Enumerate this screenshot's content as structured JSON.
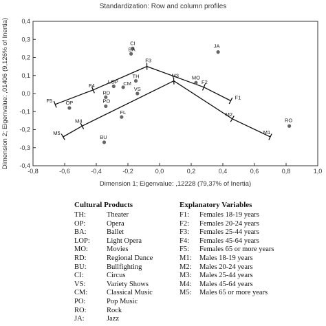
{
  "chart_data": {
    "type": "scatter",
    "subtitle": "Standardization: Row and column profiles",
    "xlabel": "Dimension 1; Eigenvalue: ,12228 (79,37% of Inertia)",
    "ylabel": "Dimension 2; Eigenvalue: ,01406 (9,126% of Inertia)",
    "xlim": [
      -0.8,
      1.0
    ],
    "ylim": [
      -0.4,
      0.4
    ],
    "x_ticks": [
      "-0,8",
      "-0,6",
      "-0,4",
      "-0,2",
      "0,0",
      "0,2",
      "0,4",
      "0,6",
      "0,8",
      "1,0"
    ],
    "y_ticks": [
      "0,4",
      "0,3",
      "0,2",
      "0,1",
      "0,0",
      "-0,1",
      "-0,2",
      "-0,3",
      "-0,4"
    ],
    "grid": false,
    "points": [
      {
        "label": "CI",
        "x": -0.17,
        "y": 0.25
      },
      {
        "label": "BA",
        "x": -0.18,
        "y": 0.22
      },
      {
        "label": "JA",
        "x": 0.37,
        "y": 0.23
      },
      {
        "label": "TH",
        "x": -0.15,
        "y": 0.07
      },
      {
        "label": "OP",
        "x": -0.57,
        "y": -0.08
      },
      {
        "label": "LOP",
        "x": -0.29,
        "y": 0.04
      },
      {
        "label": "CM",
        "x": -0.23,
        "y": 0.035
      },
      {
        "label": "RD",
        "x": -0.34,
        "y": -0.02
      },
      {
        "label": "PO",
        "x": -0.34,
        "y": -0.07
      },
      {
        "label": "FL",
        "x": -0.24,
        "y": -0.13
      },
      {
        "label": "VS",
        "x": -0.14,
        "y": 0.0
      },
      {
        "label": "BU",
        "x": -0.35,
        "y": -0.27
      },
      {
        "label": "MO",
        "x": 0.23,
        "y": 0.06
      },
      {
        "label": "RO",
        "x": 0.82,
        "y": -0.18
      }
    ],
    "female_line": [
      {
        "label": "F5",
        "x": -0.66,
        "y": -0.06
      },
      {
        "label": "F4",
        "x": -0.42,
        "y": 0.02
      },
      {
        "label": "F3",
        "x": -0.08,
        "y": 0.15
      },
      {
        "label": "F2",
        "x": 0.28,
        "y": 0.035
      },
      {
        "label": "F1",
        "x": 0.45,
        "y": -0.04
      }
    ],
    "male_line": [
      {
        "label": "M5",
        "x": -0.61,
        "y": -0.24
      },
      {
        "label": "M4",
        "x": -0.49,
        "y": -0.18
      },
      {
        "label": "M3",
        "x": 0.09,
        "y": 0.07
      },
      {
        "label": "M2",
        "x": 0.46,
        "y": -0.14
      },
      {
        "label": "M1",
        "x": 0.7,
        "y": -0.24
      }
    ]
  },
  "legend": {
    "cultural_title": "Cultural Products",
    "cultural_items": [
      {
        "code": "TH:",
        "name": "Theater"
      },
      {
        "code": "OP:",
        "name": "Opera"
      },
      {
        "code": "BA:",
        "name": "Ballet"
      },
      {
        "code": "LOP:",
        "name": "Light Opera"
      },
      {
        "code": "MO:",
        "name": "Movies"
      },
      {
        "code": "RD:",
        "name": "Regional Dance"
      },
      {
        "code": "BU:",
        "name": "Bullfighting"
      },
      {
        "code": "CI:",
        "name": "Circus"
      },
      {
        "code": "VS:",
        "name": "Variety Shows"
      },
      {
        "code": "CM:",
        "name": "Classical Music"
      },
      {
        "code": "PO:",
        "name": "Pop Music"
      },
      {
        "code": "RO:",
        "name": "Rock"
      },
      {
        "code": "JA:",
        "name": "Jazz"
      }
    ],
    "explanatory_title": "Explanatory Variables",
    "explanatory_items": [
      {
        "code": "F1:",
        "name": "Females 18-19 years"
      },
      {
        "code": "F2:",
        "name": "Females 20-24 years"
      },
      {
        "code": "F3:",
        "name": "Females 25-44 years"
      },
      {
        "code": "F4:",
        "name": "Females 45-64 years"
      },
      {
        "code": "F5:",
        "name": "Females 65 or more years"
      },
      {
        "code": "M1:",
        "name": "Males 18-19 years"
      },
      {
        "code": "M2:",
        "name": "Males 20-24 years"
      },
      {
        "code": "M3:",
        "name": "Males 25-44 years"
      },
      {
        "code": "M4:",
        "name": "Males 45-64 years"
      },
      {
        "code": "M5:",
        "name": "Males 65 or more years"
      }
    ]
  },
  "colors": {
    "point": "#666666",
    "line": "#111111",
    "axis": "#333333"
  }
}
